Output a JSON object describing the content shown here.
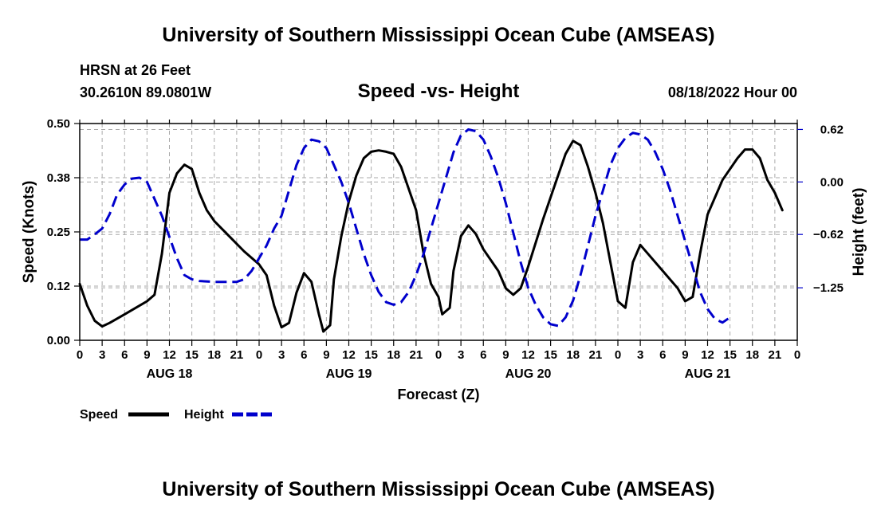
{
  "header": {
    "title": "University of Southern Mississippi Ocean Cube (AMSEAS)",
    "station": "HRSN at 26 Feet",
    "coords": "30.2610N  89.0801W",
    "subtitle": "Speed -vs- Height",
    "datetime": "08/18/2022 Hour 00"
  },
  "footer": {
    "title": "University of Southern Mississippi Ocean Cube (AMSEAS)"
  },
  "chart_data": {
    "type": "line",
    "title": "Speed -vs- Height",
    "xlabel": "Forecast (Z)",
    "ylabel": "Speed (Knots)",
    "y2label": "Height (feet)",
    "xlim": [
      0,
      96
    ],
    "ylim": [
      0,
      0.5
    ],
    "y2lim": [
      -1.87,
      0.69
    ],
    "grid": true,
    "legend_position": "bottom-left",
    "x_ticks": [
      0,
      3,
      6,
      9,
      12,
      15,
      18,
      21,
      24,
      27,
      30,
      33,
      36,
      39,
      42,
      45,
      48,
      51,
      54,
      57,
      60,
      63,
      66,
      69,
      72,
      75,
      78,
      81,
      84,
      87,
      90,
      93,
      96
    ],
    "x_tick_labels": [
      "0",
      "3",
      "6",
      "9",
      "12",
      "15",
      "18",
      "21",
      "0",
      "3",
      "6",
      "9",
      "12",
      "15",
      "18",
      "21",
      "0",
      "3",
      "6",
      "9",
      "12",
      "15",
      "18",
      "21",
      "0",
      "3",
      "6",
      "9",
      "12",
      "15",
      "18",
      "21",
      "0"
    ],
    "day_labels": [
      {
        "label": "AUG 18",
        "x": 12
      },
      {
        "label": "AUG 19",
        "x": 36
      },
      {
        "label": "AUG 20",
        "x": 60
      },
      {
        "label": "AUG 21",
        "x": 84
      }
    ],
    "y_ticks": [
      0.0,
      0.125,
      0.25,
      0.375,
      0.5
    ],
    "y_tick_labels": [
      "0.00",
      "0.12",
      "0.25",
      "0.38",
      "0.50"
    ],
    "y2_ticks": [
      0.62,
      0.0,
      -0.62,
      -1.25
    ],
    "y2_tick_labels": [
      "0.62",
      "0.00",
      "-0.62",
      "-1.25"
    ],
    "series": [
      {
        "name": "Speed",
        "axis": "left",
        "color": "#000000",
        "dash": "solid",
        "points": [
          [
            0,
            0.13
          ],
          [
            1,
            0.08
          ],
          [
            2,
            0.045
          ],
          [
            3,
            0.032
          ],
          [
            4,
            0.04
          ],
          [
            6,
            0.06
          ],
          [
            9,
            0.09
          ],
          [
            10,
            0.105
          ],
          [
            11,
            0.2
          ],
          [
            12,
            0.34
          ],
          [
            13,
            0.385
          ],
          [
            14,
            0.405
          ],
          [
            15,
            0.395
          ],
          [
            16,
            0.34
          ],
          [
            17,
            0.3
          ],
          [
            18,
            0.275
          ],
          [
            20,
            0.24
          ],
          [
            22,
            0.205
          ],
          [
            24,
            0.175
          ],
          [
            25,
            0.15
          ],
          [
            26,
            0.08
          ],
          [
            27,
            0.03
          ],
          [
            28,
            0.04
          ],
          [
            29,
            0.11
          ],
          [
            30,
            0.155
          ],
          [
            31,
            0.135
          ],
          [
            32,
            0.06
          ],
          [
            32.6,
            0.02
          ],
          [
            33.5,
            0.035
          ],
          [
            34,
            0.14
          ],
          [
            35,
            0.24
          ],
          [
            36,
            0.32
          ],
          [
            37,
            0.38
          ],
          [
            38,
            0.42
          ],
          [
            39,
            0.435
          ],
          [
            40,
            0.438
          ],
          [
            41,
            0.435
          ],
          [
            42,
            0.43
          ],
          [
            43,
            0.4
          ],
          [
            45,
            0.3
          ],
          [
            46,
            0.2
          ],
          [
            47,
            0.13
          ],
          [
            48,
            0.1
          ],
          [
            48.5,
            0.06
          ],
          [
            49.5,
            0.075
          ],
          [
            50,
            0.16
          ],
          [
            51,
            0.24
          ],
          [
            52,
            0.265
          ],
          [
            53,
            0.245
          ],
          [
            54,
            0.21
          ],
          [
            56,
            0.16
          ],
          [
            57,
            0.12
          ],
          [
            58,
            0.105
          ],
          [
            59,
            0.12
          ],
          [
            60,
            0.17
          ],
          [
            62,
            0.28
          ],
          [
            64,
            0.38
          ],
          [
            65,
            0.43
          ],
          [
            66,
            0.46
          ],
          [
            67,
            0.45
          ],
          [
            68,
            0.4
          ],
          [
            69,
            0.34
          ],
          [
            70,
            0.27
          ],
          [
            71,
            0.18
          ],
          [
            72,
            0.09
          ],
          [
            73,
            0.075
          ],
          [
            74,
            0.18
          ],
          [
            75,
            0.22
          ],
          [
            76,
            0.2
          ],
          [
            78,
            0.16
          ],
          [
            80,
            0.12
          ],
          [
            81,
            0.09
          ],
          [
            82,
            0.1
          ],
          [
            83,
            0.2
          ],
          [
            84,
            0.29
          ],
          [
            86,
            0.37
          ],
          [
            88,
            0.42
          ],
          [
            89,
            0.44
          ],
          [
            90,
            0.44
          ],
          [
            91,
            0.42
          ],
          [
            92,
            0.37
          ],
          [
            93,
            0.34
          ],
          [
            94,
            0.3
          ]
        ]
      },
      {
        "name": "Height",
        "axis": "right",
        "color": "#0000cc",
        "dash": "dashed",
        "points": [
          [
            0,
            -0.68
          ],
          [
            1,
            -0.68
          ],
          [
            2,
            -0.62
          ],
          [
            3,
            -0.55
          ],
          [
            4,
            -0.38
          ],
          [
            5,
            -0.15
          ],
          [
            6,
            -0.03
          ],
          [
            7,
            0.04
          ],
          [
            8,
            0.05
          ],
          [
            9,
            0.0
          ],
          [
            10,
            -0.2
          ],
          [
            11,
            -0.4
          ],
          [
            12,
            -0.65
          ],
          [
            13,
            -0.9
          ],
          [
            14,
            -1.1
          ],
          [
            15,
            -1.15
          ],
          [
            16,
            -1.17
          ],
          [
            18,
            -1.18
          ],
          [
            20,
            -1.18
          ],
          [
            21,
            -1.18
          ],
          [
            22,
            -1.15
          ],
          [
            23,
            -1.05
          ],
          [
            24,
            -0.9
          ],
          [
            25,
            -0.75
          ],
          [
            26,
            -0.55
          ],
          [
            27,
            -0.4
          ],
          [
            28,
            -0.1
          ],
          [
            29,
            0.2
          ],
          [
            30,
            0.4
          ],
          [
            31,
            0.5
          ],
          [
            32,
            0.48
          ],
          [
            33,
            0.4
          ],
          [
            34,
            0.2
          ],
          [
            35,
            0.0
          ],
          [
            36,
            -0.25
          ],
          [
            37,
            -0.55
          ],
          [
            38,
            -0.85
          ],
          [
            39,
            -1.1
          ],
          [
            40,
            -1.3
          ],
          [
            41,
            -1.42
          ],
          [
            42,
            -1.45
          ],
          [
            43,
            -1.42
          ],
          [
            44,
            -1.3
          ],
          [
            45,
            -1.1
          ],
          [
            46,
            -0.85
          ],
          [
            47,
            -0.55
          ],
          [
            48,
            -0.25
          ],
          [
            49,
            0.05
          ],
          [
            50,
            0.35
          ],
          [
            51,
            0.55
          ],
          [
            52,
            0.62
          ],
          [
            53,
            0.6
          ],
          [
            54,
            0.5
          ],
          [
            55,
            0.3
          ],
          [
            56,
            0.05
          ],
          [
            57,
            -0.25
          ],
          [
            58,
            -0.6
          ],
          [
            59,
            -0.95
          ],
          [
            60,
            -1.25
          ],
          [
            61,
            -1.45
          ],
          [
            62,
            -1.6
          ],
          [
            63,
            -1.68
          ],
          [
            64,
            -1.7
          ],
          [
            65,
            -1.6
          ],
          [
            66,
            -1.4
          ],
          [
            67,
            -1.1
          ],
          [
            68,
            -0.75
          ],
          [
            69,
            -0.4
          ],
          [
            70,
            -0.1
          ],
          [
            71,
            0.2
          ],
          [
            72,
            0.4
          ],
          [
            73,
            0.52
          ],
          [
            74,
            0.58
          ],
          [
            75,
            0.56
          ],
          [
            76,
            0.5
          ],
          [
            77,
            0.35
          ],
          [
            78,
            0.15
          ],
          [
            79,
            -0.1
          ],
          [
            80,
            -0.4
          ],
          [
            81,
            -0.7
          ],
          [
            82,
            -1.0
          ],
          [
            83,
            -1.3
          ],
          [
            84,
            -1.5
          ],
          [
            85,
            -1.62
          ],
          [
            86,
            -1.66
          ],
          [
            87,
            -1.6
          ]
        ]
      }
    ]
  }
}
